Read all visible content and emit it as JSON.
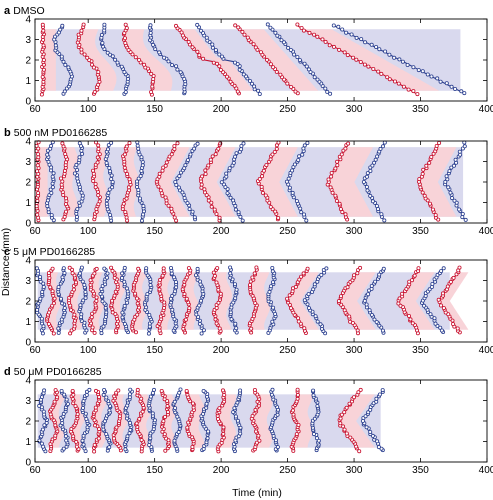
{
  "figure": {
    "ylabel": "Distance (mm)",
    "xlabel": "Time (min)",
    "colors": {
      "red_phase": "#c8102e",
      "blue_phase": "#2b3f8f",
      "red_band": "#f8d3d8",
      "blue_band": "#d9d9ee"
    }
  },
  "chart_data": [
    {
      "type": "scatter",
      "letter": "a",
      "title": "DMSO",
      "xlim": [
        60,
        400
      ],
      "ylim": [
        0,
        4
      ],
      "xticks": [
        60,
        100,
        150,
        200,
        250,
        300,
        350,
        400
      ],
      "yticks": [
        0,
        1,
        2,
        3,
        4
      ],
      "band": {
        "x0": 65,
        "x1": 380,
        "y0": 0.5,
        "y1": 3.5
      },
      "stripes": [
        {
          "x_top": 66,
          "x_bot": 66,
          "shape": "straight",
          "color": "red"
        },
        {
          "x_top": 79,
          "x_bot": 83,
          "shape": "zigzag",
          "color": "blue"
        },
        {
          "x_top": 95,
          "x_bot": 106,
          "shape": "zigzag",
          "color": "red"
        },
        {
          "x_top": 112,
          "x_bot": 128,
          "shape": "zigzag",
          "color": "blue"
        },
        {
          "x_top": 128,
          "x_bot": 148,
          "shape": "zigzag",
          "color": "red"
        },
        {
          "x_top": 147,
          "x_bot": 172,
          "shape": "zigzag",
          "color": "blue"
        },
        {
          "x_top": 172,
          "x_bot": 208,
          "shape": "step",
          "color": "red"
        },
        {
          "x_top": 188,
          "x_bot": 223,
          "shape": "step",
          "color": "blue"
        },
        {
          "x_top": 214,
          "x_bot": 255,
          "shape": "diag",
          "color": "red"
        },
        {
          "x_top": 238,
          "x_bot": 280,
          "shape": "diag",
          "color": "blue"
        },
        {
          "x_top": 262,
          "x_bot": 343,
          "shape": "diag",
          "color": "red"
        },
        {
          "x_top": 290,
          "x_bot": 379,
          "shape": "diag",
          "color": "blue"
        }
      ]
    },
    {
      "type": "scatter",
      "letter": "b",
      "title": "500 nM PD0166285",
      "xlim": [
        60,
        400
      ],
      "ylim": [
        0,
        4
      ],
      "xticks": [
        60,
        100,
        150,
        200,
        250,
        300,
        350,
        400
      ],
      "yticks": [
        0,
        1,
        2,
        3,
        4
      ],
      "band": {
        "x0": 62,
        "x1": 382,
        "y0": 0.3,
        "y1": 3.7
      },
      "stripes": [
        {
          "x_top": 62,
          "x_bot": 62,
          "shape": "straight",
          "color": "red"
        },
        {
          "x_top": 72,
          "x_bot": 72,
          "shape": "wavy",
          "color": "blue"
        },
        {
          "x_top": 82,
          "x_bot": 82,
          "shape": "wavy",
          "color": "red"
        },
        {
          "x_top": 93,
          "x_bot": 93,
          "shape": "wavy",
          "color": "blue"
        },
        {
          "x_top": 106,
          "x_bot": 106,
          "shape": "wavy",
          "color": "red"
        },
        {
          "x_top": 116,
          "x_bot": 116,
          "shape": "wavy",
          "color": "blue"
        },
        {
          "x_top": 129,
          "x_bot": 129,
          "shape": "wavy",
          "color": "red"
        },
        {
          "x_top": 139,
          "x_bot": 139,
          "shape": "wavy",
          "color": "blue"
        },
        {
          "x_top": 155,
          "x_bot": 155,
          "shape": "chevron",
          "color": "red"
        },
        {
          "x_top": 170,
          "x_bot": 170,
          "shape": "chevron",
          "color": "blue"
        },
        {
          "x_top": 188,
          "x_bot": 188,
          "shape": "chevron",
          "color": "red"
        },
        {
          "x_top": 205,
          "x_bot": 205,
          "shape": "chevron",
          "color": "blue"
        },
        {
          "x_top": 232,
          "x_bot": 232,
          "shape": "chevron",
          "color": "red"
        },
        {
          "x_top": 253,
          "x_bot": 253,
          "shape": "chevron",
          "color": "blue"
        },
        {
          "x_top": 284,
          "x_bot": 284,
          "shape": "chevron",
          "color": "red"
        },
        {
          "x_top": 311,
          "x_bot": 311,
          "shape": "chevron",
          "color": "blue"
        },
        {
          "x_top": 352,
          "x_bot": 352,
          "shape": "chevron",
          "color": "red"
        },
        {
          "x_top": 372,
          "x_bot": 372,
          "shape": "chevron",
          "color": "blue"
        }
      ]
    },
    {
      "type": "scatter",
      "letter": "c",
      "title": "5 μM PD0166285",
      "xlim": [
        60,
        400
      ],
      "ylim": [
        0,
        4
      ],
      "xticks": [
        60,
        100,
        150,
        200,
        250,
        300,
        350,
        400
      ],
      "yticks": [
        0,
        1,
        2,
        3,
        4
      ],
      "band": {
        "x0": 62,
        "x1": 372,
        "y0": 0.6,
        "y1": 3.4
      },
      "stripes": [
        {
          "x_top": 64,
          "x_bot": 64,
          "shape": "wavy",
          "color": "blue"
        },
        {
          "x_top": 72,
          "x_bot": 72,
          "shape": "wavy",
          "color": "red"
        },
        {
          "x_top": 80,
          "x_bot": 80,
          "shape": "wavy",
          "color": "blue"
        },
        {
          "x_top": 88,
          "x_bot": 88,
          "shape": "wavy",
          "color": "red"
        },
        {
          "x_top": 96,
          "x_bot": 96,
          "shape": "wavy",
          "color": "blue"
        },
        {
          "x_top": 104,
          "x_bot": 104,
          "shape": "wavy",
          "color": "red"
        },
        {
          "x_top": 112,
          "x_bot": 112,
          "shape": "wavy",
          "color": "blue"
        },
        {
          "x_top": 120,
          "x_bot": 120,
          "shape": "wavy",
          "color": "red"
        },
        {
          "x_top": 128,
          "x_bot": 128,
          "shape": "wavy",
          "color": "blue"
        },
        {
          "x_top": 136,
          "x_bot": 136,
          "shape": "wavy",
          "color": "red"
        },
        {
          "x_top": 145,
          "x_bot": 145,
          "shape": "wavy",
          "color": "blue"
        },
        {
          "x_top": 155,
          "x_bot": 155,
          "shape": "wavy",
          "color": "red"
        },
        {
          "x_top": 164,
          "x_bot": 164,
          "shape": "wavy",
          "color": "blue"
        },
        {
          "x_top": 174,
          "x_bot": 174,
          "shape": "wavy",
          "color": "red"
        },
        {
          "x_top": 184,
          "x_bot": 184,
          "shape": "wavy",
          "color": "blue"
        },
        {
          "x_top": 197,
          "x_bot": 197,
          "shape": "wavy",
          "color": "red"
        },
        {
          "x_top": 209,
          "x_bot": 209,
          "shape": "wavy",
          "color": "blue"
        },
        {
          "x_top": 224,
          "x_bot": 224,
          "shape": "wavy",
          "color": "red"
        },
        {
          "x_top": 238,
          "x_bot": 238,
          "shape": "wavy",
          "color": "blue"
        },
        {
          "x_top": 253,
          "x_bot": 253,
          "shape": "chevron",
          "color": "red"
        },
        {
          "x_top": 267,
          "x_bot": 267,
          "shape": "chevron",
          "color": "blue"
        },
        {
          "x_top": 292,
          "x_bot": 292,
          "shape": "chevron",
          "color": "red"
        },
        {
          "x_top": 311,
          "x_bot": 311,
          "shape": "chevron",
          "color": "blue"
        },
        {
          "x_top": 337,
          "x_bot": 337,
          "shape": "chevron",
          "color": "red"
        },
        {
          "x_top": 355,
          "x_bot": 355,
          "shape": "chevron",
          "color": "blue"
        },
        {
          "x_top": 368,
          "x_bot": 368,
          "shape": "chevron",
          "color": "red"
        }
      ]
    },
    {
      "type": "scatter",
      "letter": "d",
      "title": "50 μM PD0166285",
      "xlim": [
        60,
        400
      ],
      "ylim": [
        0,
        4
      ],
      "xticks": [
        60,
        100,
        150,
        200,
        250,
        300,
        350,
        400
      ],
      "yticks": [
        0,
        1,
        2,
        3,
        4
      ],
      "band": {
        "x0": 62,
        "x1": 320,
        "y0": 0.7,
        "y1": 3.3
      },
      "stripes": [
        {
          "x_top": 66,
          "x_bot": 66,
          "shape": "wavy",
          "color": "blue"
        },
        {
          "x_top": 74,
          "x_bot": 74,
          "shape": "wavy",
          "color": "red"
        },
        {
          "x_top": 82,
          "x_bot": 82,
          "shape": "wavy",
          "color": "blue"
        },
        {
          "x_top": 90,
          "x_bot": 90,
          "shape": "wavy",
          "color": "red"
        },
        {
          "x_top": 98,
          "x_bot": 98,
          "shape": "wavy",
          "color": "blue"
        },
        {
          "x_top": 106,
          "x_bot": 106,
          "shape": "wavy",
          "color": "red"
        },
        {
          "x_top": 114,
          "x_bot": 114,
          "shape": "wavy",
          "color": "blue"
        },
        {
          "x_top": 122,
          "x_bot": 122,
          "shape": "wavy",
          "color": "red"
        },
        {
          "x_top": 130,
          "x_bot": 130,
          "shape": "wavy",
          "color": "blue"
        },
        {
          "x_top": 139,
          "x_bot": 139,
          "shape": "wavy",
          "color": "red"
        },
        {
          "x_top": 148,
          "x_bot": 148,
          "shape": "wavy",
          "color": "blue"
        },
        {
          "x_top": 158,
          "x_bot": 158,
          "shape": "wavy",
          "color": "red"
        },
        {
          "x_top": 167,
          "x_bot": 167,
          "shape": "wavy",
          "color": "blue"
        },
        {
          "x_top": 177,
          "x_bot": 177,
          "shape": "wavy",
          "color": "red"
        },
        {
          "x_top": 188,
          "x_bot": 188,
          "shape": "wavy",
          "color": "blue"
        },
        {
          "x_top": 200,
          "x_bot": 200,
          "shape": "wavy",
          "color": "red"
        },
        {
          "x_top": 212,
          "x_bot": 212,
          "shape": "wavy",
          "color": "blue"
        },
        {
          "x_top": 226,
          "x_bot": 226,
          "shape": "wavy",
          "color": "red"
        },
        {
          "x_top": 240,
          "x_bot": 240,
          "shape": "wavy",
          "color": "blue"
        },
        {
          "x_top": 256,
          "x_bot": 256,
          "shape": "wavy",
          "color": "red"
        },
        {
          "x_top": 271,
          "x_bot": 271,
          "shape": "wavy",
          "color": "blue"
        },
        {
          "x_top": 292,
          "x_bot": 292,
          "shape": "chevron",
          "color": "red"
        },
        {
          "x_top": 310,
          "x_bot": 310,
          "shape": "chevron",
          "color": "blue"
        }
      ]
    }
  ]
}
